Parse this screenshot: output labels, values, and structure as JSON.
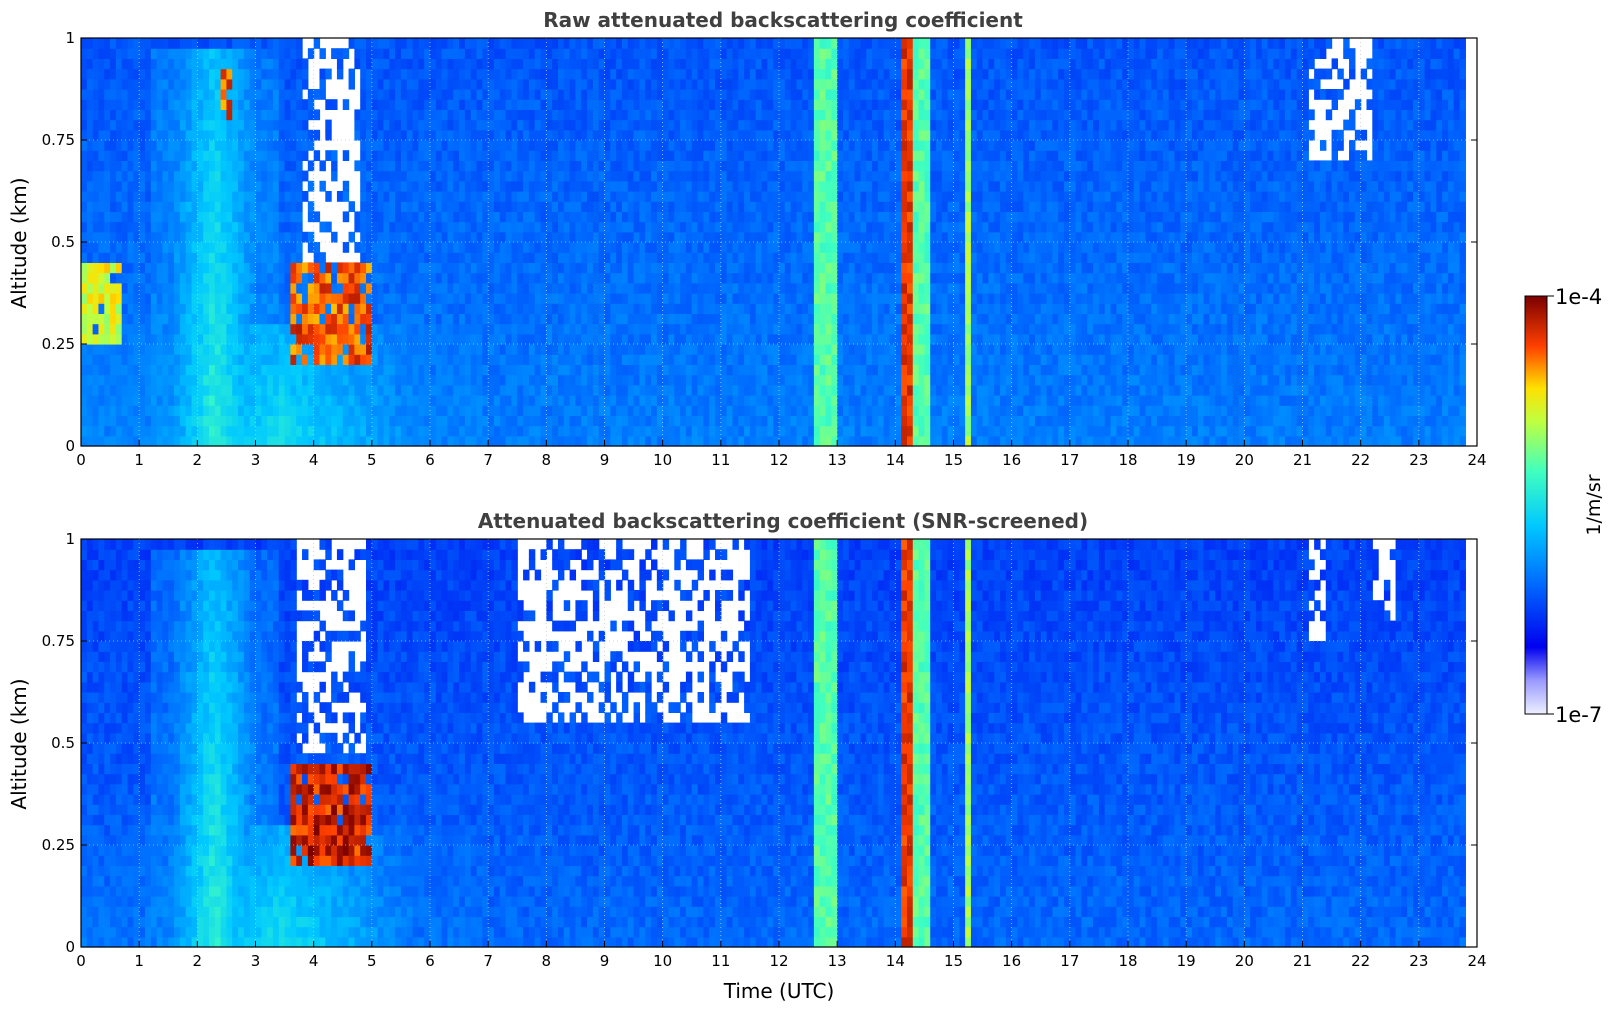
{
  "chart_data": [
    {
      "type": "heatmap",
      "title": "Raw attenuated backscattering coefficient",
      "xlabel": "",
      "ylabel": "Altitude (km)",
      "xlim": [
        0,
        24
      ],
      "ylim": [
        0,
        1
      ],
      "x_ticks": [
        "0",
        "1",
        "2",
        "3",
        "4",
        "5",
        "6",
        "7",
        "8",
        "9",
        "10",
        "11",
        "12",
        "13",
        "14",
        "15",
        "16",
        "17",
        "18",
        "19",
        "20",
        "21",
        "22",
        "23",
        "24"
      ],
      "y_ticks": [
        "0",
        "0.25",
        "0.5",
        "0.75",
        "1"
      ],
      "grid": true,
      "data_end_time": 23.8,
      "background_level": 0.28,
      "features": [
        {
          "kind": "aerosol_layer",
          "t_start": 1.2,
          "t_end": 3.4,
          "alt_top": 0.98,
          "level": 0.55
        },
        {
          "kind": "aerosol_layer",
          "t_start": 0.0,
          "t_end": 6.9,
          "alt_top": 0.3,
          "level": 0.5
        },
        {
          "kind": "cloud",
          "t_start": 3.6,
          "t_end": 5.0,
          "alt_bottom": 0.2,
          "alt_top": 0.45,
          "level": 0.95
        },
        {
          "kind": "cloud",
          "t_start": 0.0,
          "t_end": 0.7,
          "alt_bottom": 0.25,
          "alt_top": 0.45,
          "level": 0.8
        },
        {
          "kind": "cloud",
          "t_start": 2.4,
          "t_end": 2.6,
          "alt_bottom": 0.8,
          "alt_top": 0.92,
          "level": 0.95
        },
        {
          "kind": "rain",
          "t_start": 12.6,
          "t_end": 13.0,
          "level": 0.6
        },
        {
          "kind": "rain",
          "t_start": 14.15,
          "t_end": 14.3,
          "level": 0.9
        },
        {
          "kind": "rain",
          "t_start": 14.35,
          "t_end": 14.55,
          "level": 0.6
        },
        {
          "kind": "rain",
          "t_start": 15.15,
          "t_end": 15.3,
          "level": 0.68
        },
        {
          "kind": "noise_gap",
          "t_start": 3.8,
          "t_end": 4.8,
          "alt_bottom": 0.45,
          "alt_top": 1.0
        },
        {
          "kind": "noise_gap",
          "t_start": 21.1,
          "t_end": 22.2,
          "alt_bottom": 0.7,
          "alt_top": 1.0
        }
      ]
    },
    {
      "type": "heatmap",
      "title": "Attenuated backscattering coefficient (SNR-screened)",
      "xlabel": "Time (UTC)",
      "ylabel": "Altitude (km)",
      "xlim": [
        0,
        24
      ],
      "ylim": [
        0,
        1
      ],
      "x_ticks": [
        "0",
        "1",
        "2",
        "3",
        "4",
        "5",
        "6",
        "7",
        "8",
        "9",
        "10",
        "11",
        "12",
        "13",
        "14",
        "15",
        "16",
        "17",
        "18",
        "19",
        "20",
        "21",
        "22",
        "23",
        "24"
      ],
      "y_ticks": [
        "0",
        "0.25",
        "0.5",
        "0.75",
        "1"
      ],
      "grid": true,
      "data_end_time": 23.8,
      "background_level": 0.25,
      "features": [
        {
          "kind": "aerosol_layer",
          "t_start": 1.2,
          "t_end": 3.4,
          "alt_top": 0.98,
          "level": 0.55
        },
        {
          "kind": "aerosol_layer",
          "t_start": 0.0,
          "t_end": 6.9,
          "alt_top": 0.3,
          "level": 0.5
        },
        {
          "kind": "cloud",
          "t_start": 3.6,
          "t_end": 5.0,
          "alt_bottom": 0.2,
          "alt_top": 0.45,
          "level": 1.0
        },
        {
          "kind": "rain",
          "t_start": 12.6,
          "t_end": 13.0,
          "level": 0.6
        },
        {
          "kind": "rain",
          "t_start": 14.15,
          "t_end": 14.3,
          "level": 0.9
        },
        {
          "kind": "rain",
          "t_start": 14.35,
          "t_end": 14.55,
          "level": 0.6
        },
        {
          "kind": "rain",
          "t_start": 15.15,
          "t_end": 15.3,
          "level": 0.68
        },
        {
          "kind": "screened_out",
          "t_start": 3.7,
          "t_end": 4.9,
          "alt_bottom": 0.48,
          "alt_top": 1.0
        },
        {
          "kind": "screened_out",
          "t_start": 7.5,
          "t_end": 11.5,
          "alt_bottom": 0.55,
          "alt_top": 1.0
        },
        {
          "kind": "screened_out",
          "t_start": 21.1,
          "t_end": 21.4,
          "alt_bottom": 0.75,
          "alt_top": 1.0
        },
        {
          "kind": "screened_out",
          "t_start": 22.2,
          "t_end": 22.6,
          "alt_bottom": 0.8,
          "alt_top": 1.0
        }
      ]
    }
  ],
  "colorbar": {
    "max_label": "1e-4",
    "min_label": "1e-7",
    "unit": "1/m/sr",
    "colormap": "jet"
  }
}
